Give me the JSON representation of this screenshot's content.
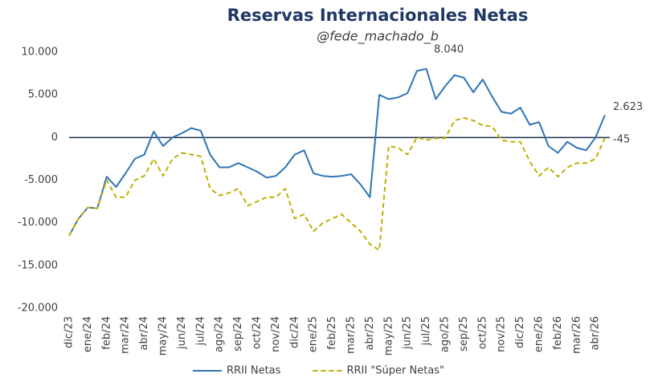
{
  "chart_data": {
    "type": "line",
    "title": "Reservas Internacionales Netas",
    "subtitle": "@fede_machado_b",
    "categories": [
      "dic/23",
      null,
      "ene/24",
      null,
      "feb/24",
      null,
      "mar/24",
      null,
      "abr/24",
      null,
      "may/24",
      null,
      "jun/24",
      null,
      "jul/24",
      null,
      "ago/24",
      null,
      "sep/24",
      null,
      "oct/24",
      null,
      "nov/24",
      null,
      "dic/24",
      null,
      "ene/25",
      null,
      "feb/25",
      null,
      "mar/25",
      null,
      "abr/25",
      null,
      "may/25",
      null,
      "jun/25",
      null,
      "jul/25",
      null,
      "ago/25",
      null,
      "sep/25",
      null,
      "oct/25",
      null,
      "nov/25",
      null,
      "dic/25",
      null,
      "ene/26",
      null,
      "feb/26",
      null,
      "mar/26",
      null,
      "abr/26",
      null
    ],
    "series": [
      {
        "name": "RRII Netas",
        "color": "#2e75b6",
        "dashed": false,
        "values": [
          -11500,
          -9500,
          -8200,
          -8300,
          -4600,
          -5800,
          -4200,
          -2500,
          -2000,
          700,
          -1000,
          0,
          500,
          1100,
          800,
          -2000,
          -3500,
          -3500,
          -3000,
          -3500,
          -4000,
          -4700,
          -4500,
          -3500,
          -2000,
          -1500,
          -4200,
          -4500,
          -4600,
          -4500,
          -4300,
          -5500,
          -7000,
          5000,
          4500,
          4700,
          5200,
          7800,
          8040,
          4500,
          6000,
          7300,
          7000,
          5300,
          6800,
          4800,
          3000,
          2800,
          3500,
          1500,
          1800,
          -1000,
          -1800,
          -500,
          -1200,
          -1500,
          0,
          2623
        ],
        "value_labels": [
          null,
          null,
          null,
          null,
          null,
          null,
          null,
          null,
          null,
          null,
          null,
          null,
          null,
          null,
          null,
          null,
          null,
          null,
          null,
          null,
          null,
          null,
          null,
          null,
          null,
          null,
          null,
          null,
          null,
          null,
          null,
          null,
          null,
          null,
          null,
          null,
          null,
          null,
          "8.040",
          null,
          null,
          null,
          null,
          null,
          null,
          null,
          null,
          null,
          null,
          null,
          null,
          null,
          null,
          null,
          null,
          null,
          null,
          "2.623"
        ]
      },
      {
        "name": "RRII \"Súper Netas\"",
        "color": "#bfb000",
        "dashed": true,
        "values": [
          -11500,
          -9500,
          -8200,
          -8300,
          -5000,
          -7000,
          -7000,
          -5000,
          -4500,
          -2500,
          -4500,
          -2500,
          -1800,
          -2000,
          -2200,
          -6000,
          -6800,
          -6500,
          -6000,
          -8000,
          -7500,
          -7000,
          -7000,
          -6000,
          -9500,
          -9000,
          -11000,
          -10000,
          -9500,
          -9000,
          -10000,
          -11000,
          -12500,
          -13200,
          -1000,
          -1200,
          -2000,
          0,
          -300,
          -100,
          -100,
          2000,
          2300,
          2000,
          1400,
          1300,
          -300,
          -500,
          -500,
          -2800,
          -4500,
          -3500,
          -4600,
          -3500,
          -3000,
          -3000,
          -2500,
          -45
        ],
        "value_labels": [
          null,
          null,
          null,
          null,
          null,
          null,
          null,
          null,
          null,
          null,
          null,
          null,
          null,
          null,
          null,
          null,
          null,
          null,
          null,
          null,
          null,
          null,
          null,
          null,
          null,
          null,
          null,
          null,
          null,
          null,
          null,
          null,
          null,
          null,
          null,
          null,
          null,
          null,
          null,
          null,
          null,
          null,
          null,
          null,
          null,
          null,
          null,
          null,
          null,
          null,
          null,
          null,
          null,
          null,
          null,
          null,
          null,
          "-45"
        ]
      }
    ],
    "ylim": [
      -20000,
      10000
    ],
    "yticks": [
      {
        "value": -20000,
        "label": "-20.000"
      },
      {
        "value": -15000,
        "label": "-15.000"
      },
      {
        "value": -10000,
        "label": "-10.000"
      },
      {
        "value": -5000,
        "label": "-5.000"
      },
      0,
      {
        "value": 5000,
        "label": "5.000"
      },
      {
        "value": 10000,
        "label": "10.000"
      }
    ],
    "grid": false,
    "zero_line": true,
    "legend": "bottom"
  }
}
